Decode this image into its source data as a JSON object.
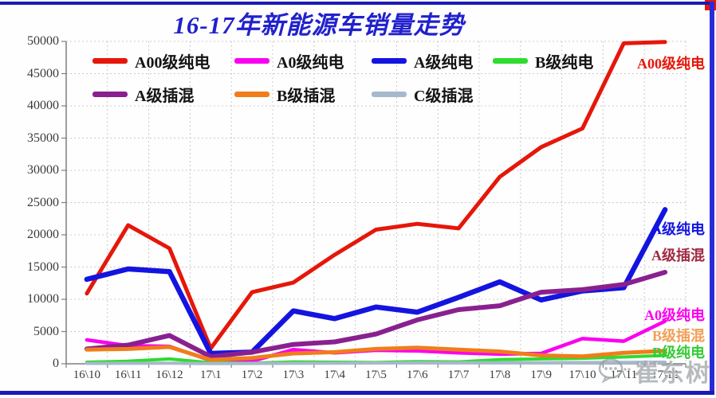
{
  "title": "16-17年新能源车销量走势",
  "watermark": {
    "name": "崔东树",
    "icon": "chat-bubble-icon"
  },
  "chart_data": {
    "type": "line",
    "title": "16-17年新能源车销量走势",
    "categories": [
      "16\\10",
      "16\\11",
      "16\\12",
      "17\\1",
      "17\\2",
      "17\\3",
      "17\\4",
      "17\\5",
      "17\\6",
      "17\\7",
      "17\\8",
      "17\\9",
      "17\\10",
      "17\\11",
      "17\\12"
    ],
    "series": [
      {
        "name": "A00级纯电",
        "color": "#e5170a",
        "values": [
          10900,
          21500,
          17900,
          2400,
          11100,
          12600,
          16900,
          20800,
          21700,
          21000,
          29000,
          33600,
          36500,
          49700,
          49900
        ]
      },
      {
        "name": "A0级纯电",
        "color": "#fb00f0",
        "values": [
          3700,
          2800,
          2700,
          500,
          400,
          2200,
          1700,
          2100,
          2000,
          1700,
          1500,
          1600,
          3900,
          3500,
          6600
        ]
      },
      {
        "name": "A级纯电",
        "color": "#1414e0",
        "values": [
          13100,
          14700,
          14300,
          1600,
          1800,
          8200,
          7000,
          8800,
          8000,
          10300,
          12700,
          9900,
          11300,
          11800,
          23900
        ]
      },
      {
        "name": "B级纯电",
        "color": "#2edc2e",
        "values": [
          250,
          400,
          750,
          150,
          100,
          300,
          250,
          200,
          350,
          300,
          650,
          750,
          850,
          1050,
          1300
        ]
      },
      {
        "name": "A级插混",
        "color": "#8a2090",
        "values": [
          2300,
          2900,
          4400,
          1100,
          1800,
          3000,
          3400,
          4600,
          6800,
          8400,
          9000,
          11100,
          11500,
          12300,
          14200
        ]
      },
      {
        "name": "B级插混",
        "color": "#f07d1a",
        "values": [
          2200,
          2300,
          2600,
          600,
          900,
          1600,
          1800,
          2300,
          2500,
          2200,
          1900,
          1300,
          1150,
          1700,
          2000
        ]
      },
      {
        "name": "C级插混",
        "color": "#a6b8cc",
        "values": [
          60,
          80,
          100,
          30,
          50,
          80,
          100,
          120,
          150,
          150,
          160,
          170,
          200,
          220,
          250
        ]
      }
    ],
    "ylim": [
      0,
      50000
    ],
    "ytick_step": 5000,
    "ytick_labels": [
      "0",
      "5000",
      "10000",
      "15000",
      "20000",
      "25000",
      "30000",
      "35000",
      "40000",
      "45000",
      "50000"
    ],
    "grid": true,
    "legend_position": "top-left-inside",
    "end_labels": [
      {
        "text": "A00级纯电",
        "color": "#e5170a",
        "y_value": 46900
      },
      {
        "text": "A级纯电",
        "color": "#1414e0",
        "y_value": 21200
      },
      {
        "text": "A级插混",
        "color": "#a12a43",
        "y_value": 17100
      },
      {
        "text": "A0级纯电",
        "color": "#fb00f0",
        "y_value": 7900
      },
      {
        "text": "B级插混",
        "color": "#f2a057",
        "y_value": 4750
      },
      {
        "text": "B级纯电",
        "color": "#33cc33",
        "y_value": 2050
      }
    ]
  }
}
